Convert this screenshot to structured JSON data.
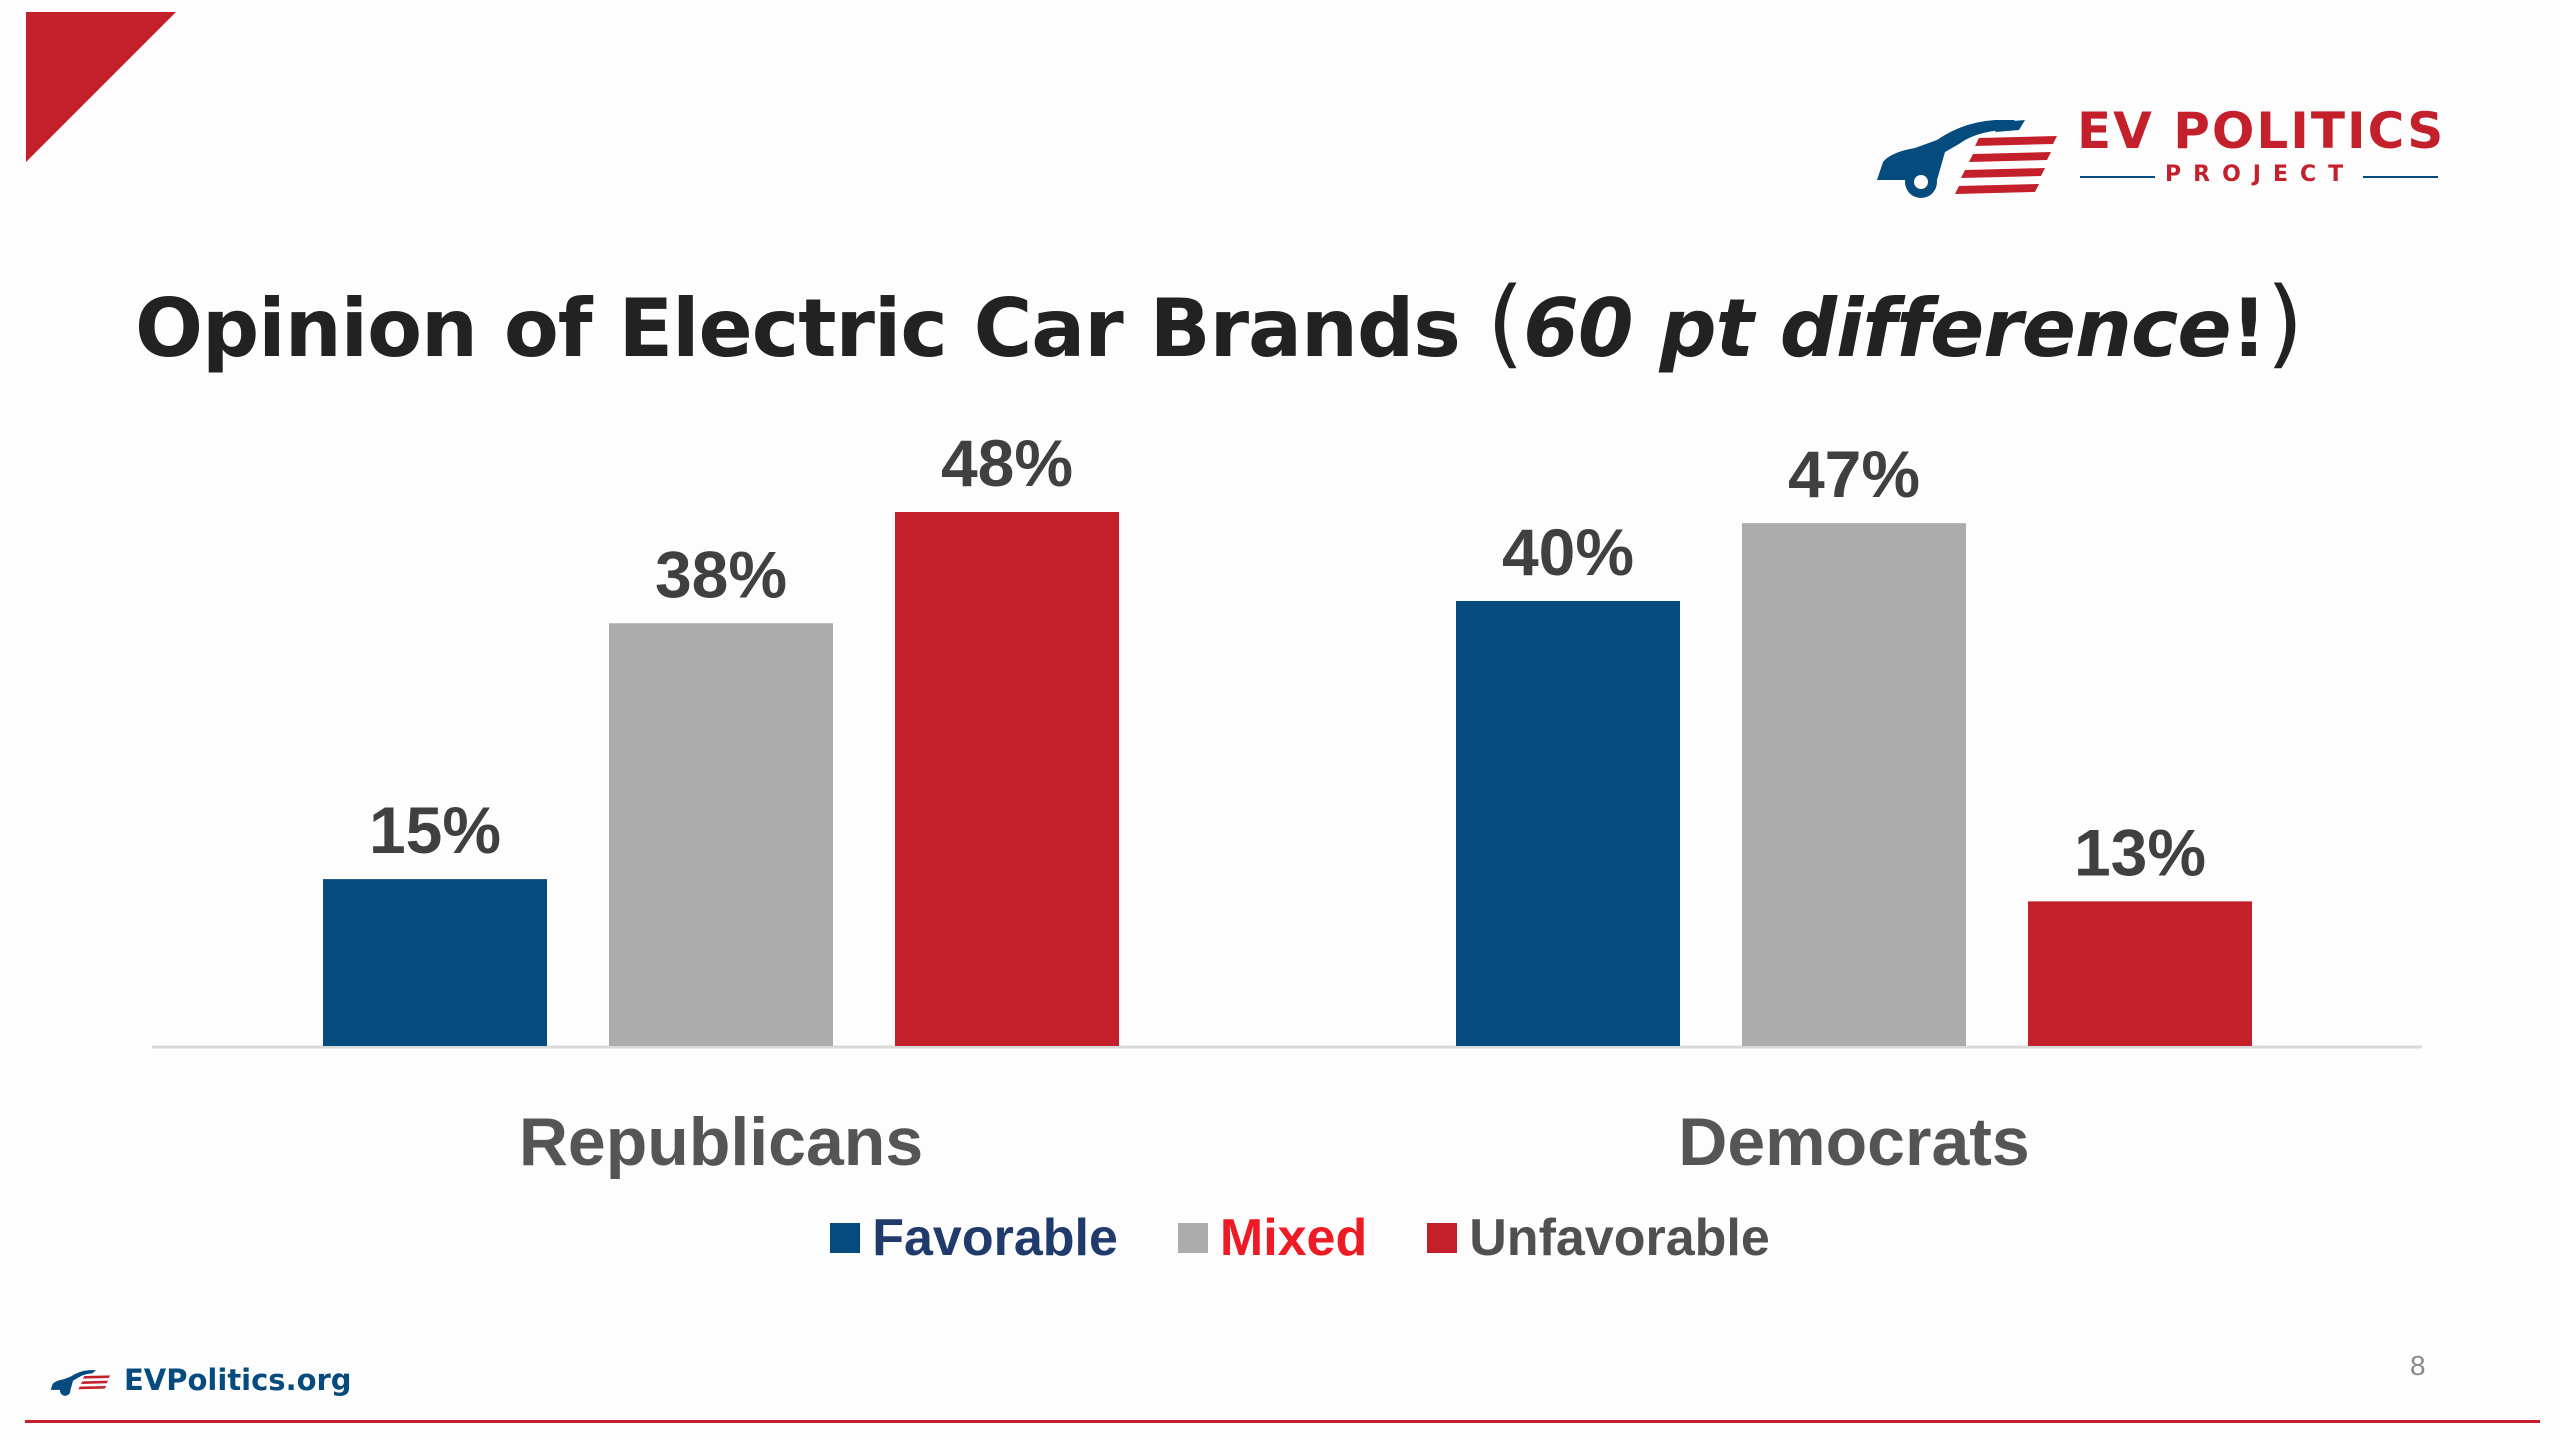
{
  "slide": {
    "title_main": "Opinion of Electric Car Brands ",
    "title_open_paren": "(",
    "title_emphasis": "60 pt difference",
    "title_exclaim": "!",
    "title_close_paren": ")",
    "page_number": "8",
    "footer_site": "EVPolitics.org"
  },
  "logo": {
    "line1": "EV POLITICS",
    "line2": "PROJECT",
    "icon": "car-flag-icon"
  },
  "colors": {
    "favorable": "#064b7e",
    "mixed": "#adacad",
    "unfavorable": "#c3202b",
    "title_text": "#222222",
    "label_text": "#404040",
    "legend_favorable_text": "#1f3a6b",
    "legend_mixed_text": "#ee1b24",
    "legend_unfavorable_text": "#505050",
    "logo_red": "#c3202b",
    "logo_navy": "#064b7e",
    "axis": "#d9d9d9"
  },
  "chart_data": {
    "type": "bar",
    "categories": [
      "Republicans",
      "Democrats"
    ],
    "series": [
      {
        "name": "Favorable",
        "values": [
          15,
          40
        ],
        "labels": [
          "15%",
          "40%"
        ]
      },
      {
        "name": "Mixed",
        "values": [
          38,
          47
        ],
        "labels": [
          "38%",
          "47%"
        ]
      },
      {
        "name": "Unfavorable",
        "values": [
          48,
          13
        ],
        "labels": [
          "48%",
          "13%"
        ]
      }
    ],
    "ylim": [
      0,
      48
    ],
    "legend_position": "bottom",
    "grid": false
  }
}
